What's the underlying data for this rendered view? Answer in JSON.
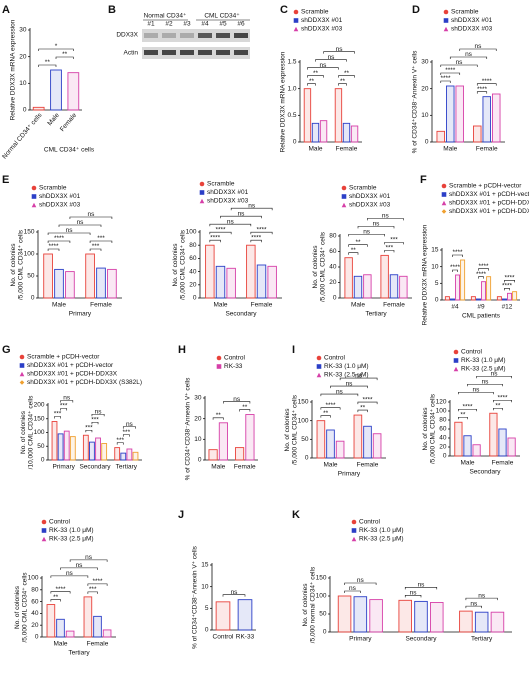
{
  "chart_data": [
    {
      "type": "bar",
      "panel": "A",
      "ylabel": [
        "Relative DDX3X mRNA expression"
      ],
      "categories": [
        "Normal CD34⁺ cells",
        "Male",
        "Female"
      ],
      "xlabel": "CML CD34⁺ cells",
      "values": [
        1,
        15,
        14
      ],
      "colors": [
        "#e8423a",
        "#2b3fc7",
        "#d63fa8"
      ],
      "ylim": [
        0,
        30
      ],
      "yticks": [
        0,
        10,
        20,
        30
      ],
      "annotations": [
        "**",
        "**",
        "*"
      ]
    },
    {
      "type": "bar",
      "panel": "C",
      "ylabel": [
        "Relative DDX3X mRNA expression"
      ],
      "categories": [
        "Male",
        "Female"
      ],
      "series": [
        {
          "name": "Scramble",
          "color": "#e8423a",
          "values": [
            1,
            1
          ]
        },
        {
          "name": "shDDX3X #01",
          "color": "#2b3fc7",
          "values": [
            0.35,
            0.35
          ]
        },
        {
          "name": "shDDX3X #03",
          "color": "#d63fa8",
          "values": [
            0.4,
            0.3
          ]
        }
      ],
      "ylim": [
        0,
        1.5
      ],
      "yticks": [
        0,
        0.5,
        {
          "value": 1,
          "label": "1.0"
        },
        1.5
      ],
      "annotations": [
        "**",
        "**",
        "**",
        "**",
        "ns",
        "ns",
        "ns"
      ]
    },
    {
      "type": "bar",
      "panel": "D",
      "ylabel": [
        "% of CD34⁺CD38⁻Annexin V⁺ cells"
      ],
      "categories": [
        "Male",
        "Female"
      ],
      "series": [
        {
          "name": "Scramble",
          "color": "#e8423a",
          "values": [
            4,
            6
          ]
        },
        {
          "name": "shDDX3X #01",
          "color": "#2b3fc7",
          "values": [
            21,
            17
          ]
        },
        {
          "name": "shDDX3X #03",
          "color": "#d63fa8",
          "values": [
            21,
            18
          ]
        }
      ],
      "ylim": [
        0,
        30
      ],
      "yticks": [
        0,
        10,
        20,
        30
      ],
      "annotations": [
        "****",
        "****",
        "****",
        "****",
        "ns",
        "ns",
        "ns"
      ]
    },
    {
      "type": "bar",
      "panel": "E",
      "ylabel": [
        "No. of colonies",
        "/5,000 CML CD34⁺ cells"
      ],
      "categories": [
        "Male",
        "Female"
      ],
      "xlabel": "Primary",
      "series": [
        {
          "name": "Scramble",
          "color": "#e8423a",
          "values": [
            100,
            100
          ]
        },
        {
          "name": "shDDX3X #01",
          "color": "#2b3fc7",
          "values": [
            65,
            68
          ]
        },
        {
          "name": "shDDX3X #03",
          "color": "#d63fa8",
          "values": [
            60,
            65
          ]
        }
      ],
      "ylim": [
        0,
        150
      ],
      "yticks": [
        0,
        50,
        100,
        150
      ],
      "annotations": [
        "****",
        "****",
        "***",
        "***",
        "ns",
        "ns",
        "ns"
      ]
    },
    {
      "type": "bar",
      "ylabel": [
        "No. of colonies",
        "/5,000 CML CD34⁺ cells"
      ],
      "categories": [
        "Male",
        "Female"
      ],
      "xlabel": "Secondary",
      "series": [
        {
          "name": "Scramble",
          "color": "#e8423a",
          "values": [
            80,
            80
          ]
        },
        {
          "name": "shDDX3X #01",
          "color": "#2b3fc7",
          "values": [
            48,
            50
          ]
        },
        {
          "name": "shDDX3X #03",
          "color": "#d63fa8",
          "values": [
            45,
            48
          ]
        }
      ],
      "ylim": [
        0,
        100
      ],
      "yticks": [
        0,
        20,
        40,
        60,
        80,
        100
      ],
      "annotations": [
        "****",
        "****",
        "****",
        "****",
        "ns",
        "ns",
        "ns"
      ]
    },
    {
      "type": "bar",
      "ylabel": [
        "No. of colonies",
        "/5,000 CML CD34⁺ cells"
      ],
      "categories": [
        "Male",
        "Female"
      ],
      "xlabel": "Tertiary",
      "series": [
        {
          "name": "Scramble",
          "color": "#e8423a",
          "values": [
            52,
            55
          ]
        },
        {
          "name": "shDDX3X #01",
          "color": "#2b3fc7",
          "values": [
            28,
            30
          ]
        },
        {
          "name": "shDDX3X #03",
          "color": "#d63fa8",
          "values": [
            30,
            28
          ]
        }
      ],
      "ylim": [
        0,
        80
      ],
      "yticks": [
        0,
        20,
        40,
        60,
        80
      ],
      "annotations": [
        "**",
        "**",
        "***",
        "***",
        "ns",
        "ns",
        "ns"
      ]
    },
    {
      "type": "bar",
      "panel": "F",
      "ylabel": [
        "Relative DDX3X mRNA expression"
      ],
      "categories": [
        "#4",
        "#9",
        "#12"
      ],
      "xlabel": "CML patients",
      "series": [
        {
          "name": "Scramble + pCDH-vector",
          "color": "#e8423a",
          "values": [
            1,
            1,
            1
          ]
        },
        {
          "name": "shDDX3X #01 + pCDH-vector",
          "color": "#2b3fc7",
          "values": [
            0.3,
            0.3,
            0.3
          ]
        },
        {
          "name": "shDDX3X #01 + pCDH-DDX3X",
          "color": "#d63fa8",
          "values": [
            7.5,
            5.5,
            2
          ]
        },
        {
          "name": "shDDX3X #01 + pCDH-DDX3X (S382L)",
          "color": "#f0a030",
          "values": [
            12,
            7,
            2.5
          ]
        }
      ],
      "ylim": [
        0,
        15
      ],
      "yticks": [
        0,
        5,
        10,
        15
      ],
      "annotations": [
        "****",
        "****",
        "****",
        "****",
        "****",
        "****"
      ]
    },
    {
      "type": "bar",
      "panel": "G",
      "ylabel": [
        "No. of colonies",
        "/10,000 CML CD34⁺ cells"
      ],
      "categories": [
        "Primary",
        "Secondary",
        "Tertiary"
      ],
      "series": [
        {
          "name": "Scramble + pCDH-vector",
          "color": "#e8423a",
          "values": [
            140,
            90,
            45
          ]
        },
        {
          "name": "shDDX3X #01 + pCDH-vector",
          "color": "#2b3fc7",
          "values": [
            95,
            65,
            25
          ]
        },
        {
          "name": "shDDX3X #01 + pCDH-DDX3X",
          "color": "#d63fa8",
          "values": [
            105,
            80,
            40
          ]
        },
        {
          "name": "shDDX3X #01 + pCDH-DDX3X (S382L)",
          "color": "#f0a030",
          "values": [
            85,
            60,
            28
          ]
        }
      ],
      "ylim": [
        0,
        200
      ],
      "yticks": [
        0,
        50,
        100,
        150,
        200
      ],
      "annotations": [
        "***",
        "***",
        "ns",
        "***",
        "***",
        "ns",
        "***",
        "***",
        "ns"
      ]
    },
    {
      "type": "bar",
      "panel": "H",
      "ylabel": [
        "% of CD34⁺CD38⁻Annexin V⁺ cells"
      ],
      "categories": [
        "Male",
        "Female"
      ],
      "series": [
        {
          "name": "Control",
          "color": "#e8423a",
          "values": [
            5,
            6
          ]
        },
        {
          "name": "RK-33",
          "color": "#d63fa8",
          "values": [
            18,
            22
          ]
        }
      ],
      "ylim": [
        0,
        30
      ],
      "yticks": [
        0,
        10,
        20,
        30
      ],
      "annotations": [
        "**",
        "**",
        "ns"
      ]
    },
    {
      "type": "bar",
      "panel": "I",
      "ylabel": [
        "No. of colonies",
        "/5,000 CML CD34⁺ cells"
      ],
      "categories": [
        "Male",
        "Female"
      ],
      "xlabel": "Primary",
      "series": [
        {
          "name": "Control",
          "color": "#e8423a",
          "values": [
            100,
            115
          ]
        },
        {
          "name": "RK-33 (1.0 μM)",
          "color": "#2b3fc7",
          "values": [
            75,
            85
          ]
        },
        {
          "name": "RK-33 (2.5 μM)",
          "color": "#d63fa8",
          "values": [
            45,
            65
          ]
        }
      ],
      "ylim": [
        0,
        150
      ],
      "yticks": [
        0,
        50,
        100,
        150
      ],
      "annotations": [
        "**",
        "****",
        "**",
        "****",
        "ns",
        "ns",
        "ns"
      ]
    },
    {
      "type": "bar",
      "ylabel": [
        "No. of colonies",
        "/5,000 CML CD34⁺ cells"
      ],
      "categories": [
        "Male",
        "Female"
      ],
      "xlabel": "Secondary",
      "series": [
        {
          "name": "Control",
          "color": "#e8423a",
          "values": [
            75,
            95
          ]
        },
        {
          "name": "RK-33 (1.0 μM)",
          "color": "#2b3fc7",
          "values": [
            45,
            60
          ]
        },
        {
          "name": "RK-33 (2.5 μM)",
          "color": "#d63fa8",
          "values": [
            25,
            40
          ]
        }
      ],
      "ylim": [
        0,
        120
      ],
      "yticks": [
        0,
        20,
        40,
        60,
        80,
        100,
        120
      ],
      "annotations": [
        "**",
        "****",
        "**",
        "****",
        "ns",
        "ns",
        "ns"
      ]
    },
    {
      "type": "bar",
      "ylabel": [
        "No. of colonies",
        "/5,000 CML CD34⁺ cells"
      ],
      "categories": [
        "Male",
        "Female"
      ],
      "xlabel": "Tertiary",
      "series": [
        {
          "name": "Control",
          "color": "#e8423a",
          "values": [
            55,
            68
          ]
        },
        {
          "name": "RK-33 (1.0 μM)",
          "color": "#2b3fc7",
          "values": [
            30,
            35
          ]
        },
        {
          "name": "RK-33 (2.5 μM)",
          "color": "#d63fa8",
          "values": [
            10,
            12
          ]
        }
      ],
      "ylim": [
        0,
        100
      ],
      "yticks": [
        0,
        20,
        40,
        60,
        80,
        100
      ],
      "annotations": [
        "**",
        "****",
        "***",
        "****",
        "ns",
        "ns",
        "ns"
      ]
    },
    {
      "type": "bar",
      "panel": "J",
      "ylabel": [
        "% of CD34⁺CD38⁻Annexin V⁺ cells"
      ],
      "categories": [
        "Control",
        "RK-33"
      ],
      "values": [
        6.5,
        7
      ],
      "colors": [
        "#e8423a",
        "#2b3fc7"
      ],
      "ylim": [
        0,
        15
      ],
      "yticks": [
        0,
        5,
        10,
        15
      ],
      "annotations": [
        "ns"
      ]
    },
    {
      "type": "bar",
      "panel": "K",
      "ylabel": [
        "No. of colonies",
        "/5,000 normal CD34⁺ cells"
      ],
      "categories": [
        "Primary",
        "Secondary",
        "Tertiary"
      ],
      "series": [
        {
          "name": "Control",
          "color": "#e8423a",
          "values": [
            100,
            88,
            58
          ]
        },
        {
          "name": "RK-33 (1.0 μM)",
          "color": "#2b3fc7",
          "values": [
            98,
            85,
            55
          ]
        },
        {
          "name": "RK-33 (2.5 μM)",
          "color": "#d63fa8",
          "values": [
            90,
            82,
            55
          ]
        }
      ],
      "ylim": [
        0,
        150
      ],
      "yticks": [
        0,
        50,
        100,
        150
      ],
      "annotations": [
        "ns",
        "ns",
        "ns",
        "ns",
        "ns",
        "ns"
      ]
    }
  ],
  "blot": {
    "panel": "B",
    "groups": [
      "Normal CD34⁺",
      "CML CD34⁺"
    ],
    "lanes": [
      "#1",
      "#2",
      "#3",
      "#4",
      "#5",
      "#6"
    ],
    "rows": [
      "DDX3X",
      "Actin"
    ]
  }
}
